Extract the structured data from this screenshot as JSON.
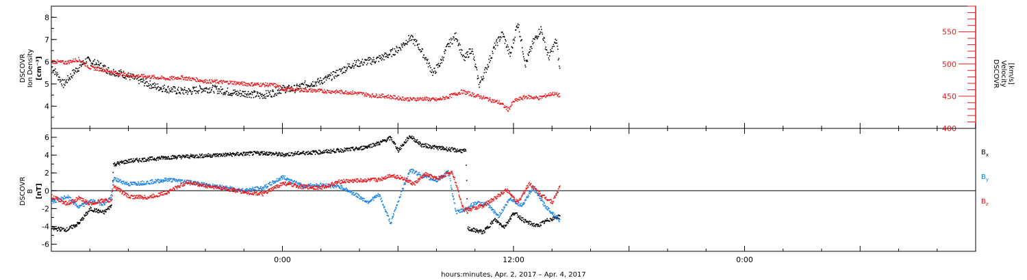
{
  "chart_data": [
    {
      "type": "scatter",
      "panel": "top",
      "left_axis": {
        "label_lines": [
          "DSCOVR",
          "Ion Density"
        ],
        "unit": "[cm⁻³]",
        "range": [
          3,
          8.5
        ],
        "ticks": [
          4,
          5,
          6,
          7,
          8
        ]
      },
      "right_axis": {
        "label_lines": [
          "DSCOVR",
          "Velocity"
        ],
        "unit": "[km/s]",
        "range": [
          400,
          590
        ],
        "ticks": [
          400,
          450,
          500,
          550
        ],
        "color": "#e8191c"
      },
      "series": [
        {
          "color": "#000000",
          "axis": "left",
          "points": [
            [
              -12,
              5.8
            ],
            [
              -11.4,
              5.0
            ],
            [
              -10.8,
              5.6
            ],
            [
              -10.2,
              6.1
            ],
            [
              -9.6,
              5.9
            ],
            [
              -9.0,
              5.6
            ],
            [
              -8.4,
              5.5
            ],
            [
              -7.8,
              5.3
            ],
            [
              -7.2,
              5.1
            ],
            [
              -6.6,
              4.9
            ],
            [
              -6.0,
              4.8
            ],
            [
              -5.4,
              4.7
            ],
            [
              -4.8,
              4.7
            ],
            [
              -4.2,
              4.8
            ],
            [
              -3.6,
              4.8
            ],
            [
              -3.0,
              4.7
            ],
            [
              -2.4,
              4.6
            ],
            [
              -1.8,
              4.6
            ],
            [
              -1.2,
              4.5
            ],
            [
              -0.6,
              4.6
            ],
            [
              0,
              4.8
            ],
            [
              0.6,
              4.8
            ],
            [
              1.2,
              5.0
            ],
            [
              1.8,
              5.1
            ],
            [
              2.4,
              5.3
            ],
            [
              3.0,
              5.6
            ],
            [
              3.6,
              5.9
            ],
            [
              4.2,
              6.0
            ],
            [
              4.8,
              6.1
            ],
            [
              5.4,
              6.3
            ],
            [
              6.0,
              6.6
            ],
            [
              6.6,
              7.1
            ],
            [
              7.0,
              6.8
            ],
            [
              7.4,
              6.2
            ],
            [
              7.8,
              5.5
            ],
            [
              8.2,
              6.0
            ],
            [
              8.6,
              6.8
            ],
            [
              9.0,
              7.2
            ],
            [
              9.4,
              6.1
            ],
            [
              9.8,
              6.6
            ],
            [
              10.2,
              5.0
            ],
            [
              10.6,
              5.8
            ],
            [
              11.0,
              6.7
            ],
            [
              11.4,
              7.3
            ],
            [
              11.8,
              6.3
            ],
            [
              12.2,
              7.8
            ],
            [
              12.6,
              5.9
            ],
            [
              13.0,
              6.9
            ],
            [
              13.4,
              7.5
            ],
            [
              13.8,
              6.2
            ],
            [
              14.2,
              7.0
            ],
            [
              14.4,
              5.5
            ]
          ]
        },
        {
          "color": "#e8191c",
          "axis": "right",
          "points": [
            [
              -12,
              505
            ],
            [
              -11.3,
              503
            ],
            [
              -10.6,
              508
            ],
            [
              -10,
              495
            ],
            [
              -9.3,
              492
            ],
            [
              -8.6,
              486
            ],
            [
              -8,
              483
            ],
            [
              -7.3,
              482
            ],
            [
              -6.6,
              480
            ],
            [
              -6,
              478
            ],
            [
              -5.3,
              480
            ],
            [
              -4.6,
              477
            ],
            [
              -4,
              474
            ],
            [
              -3.3,
              473
            ],
            [
              -2.6,
              472
            ],
            [
              -2,
              470
            ],
            [
              -1.3,
              469
            ],
            [
              -0.4,
              468
            ],
            [
              0,
              462
            ],
            [
              0.6,
              461
            ],
            [
              1.3,
              460
            ],
            [
              2,
              459
            ],
            [
              2.6,
              458
            ],
            [
              3.3,
              457
            ],
            [
              4,
              455
            ],
            [
              4.6,
              452
            ],
            [
              5.3,
              451
            ],
            [
              6,
              448
            ],
            [
              6.6,
              446
            ],
            [
              7.3,
              447
            ],
            [
              8,
              445
            ],
            [
              8.6,
              450
            ],
            [
              9.3,
              458
            ],
            [
              10,
              452
            ],
            [
              10.6,
              447
            ],
            [
              11.3,
              440
            ],
            [
              11.7,
              430
            ],
            [
              12,
              443
            ],
            [
              12.6,
              450
            ],
            [
              13.3,
              448
            ],
            [
              14,
              455
            ],
            [
              14.4,
              452
            ]
          ]
        }
      ]
    },
    {
      "type": "line",
      "panel": "bottom",
      "left_axis": {
        "label_lines": [
          "DSCOVR",
          "B"
        ],
        "unit": "[nT]",
        "range": [
          -6.8,
          7
        ],
        "ticks": [
          -6,
          -4,
          -2,
          0,
          2,
          4,
          6
        ]
      },
      "legend": [
        {
          "text": "B",
          "sub": "x",
          "color": "#000000"
        },
        {
          "text": "B",
          "sub": "y",
          "color": "#1a82e6"
        },
        {
          "text": "B",
          "sub": "z",
          "color": "#e8191c"
        }
      ],
      "series": [
        {
          "name": "Bx",
          "color": "#000000",
          "points": [
            [
              -12,
              -4.2
            ],
            [
              -11.2,
              -4.3
            ],
            [
              -10.6,
              -3.6
            ],
            [
              -10,
              -2.0
            ],
            [
              -9.3,
              -2.4
            ],
            [
              -8.9,
              -1.6
            ],
            [
              -8.8,
              3.0
            ],
            [
              -8,
              3.4
            ],
            [
              -7,
              3.6
            ],
            [
              -6,
              3.8
            ],
            [
              -5,
              3.9
            ],
            [
              -4,
              4.0
            ],
            [
              -3,
              4.1
            ],
            [
              -2,
              4.2
            ],
            [
              -1,
              4.3
            ],
            [
              0,
              4.1
            ],
            [
              1,
              4.3
            ],
            [
              2,
              4.4
            ],
            [
              3,
              4.6
            ],
            [
              4,
              4.8
            ],
            [
              5,
              5.4
            ],
            [
              5.6,
              6.0
            ],
            [
              6,
              4.6
            ],
            [
              6.6,
              6.2
            ],
            [
              7.2,
              5.2
            ],
            [
              8,
              4.9
            ],
            [
              9,
              4.6
            ],
            [
              9.5,
              4.5
            ],
            [
              9.6,
              -4.2
            ],
            [
              10.4,
              -4.6
            ],
            [
              11,
              -3.2
            ],
            [
              11.5,
              -4.0
            ],
            [
              12,
              -2.4
            ],
            [
              12.6,
              -3.4
            ],
            [
              13.2,
              -3.9
            ],
            [
              13.8,
              -3.2
            ],
            [
              14.4,
              -2.8
            ]
          ]
        },
        {
          "name": "By",
          "color": "#1a82e6",
          "points": [
            [
              -12,
              -1.2
            ],
            [
              -11.2,
              -0.6
            ],
            [
              -10.6,
              -1.8
            ],
            [
              -10,
              -1.1
            ],
            [
              -9.3,
              -1.4
            ],
            [
              -8.9,
              -0.6
            ],
            [
              -8.8,
              1.4
            ],
            [
              -8,
              0.8
            ],
            [
              -7,
              1.0
            ],
            [
              -6,
              1.3
            ],
            [
              -5,
              1.1
            ],
            [
              -4,
              0.7
            ],
            [
              -3,
              0.4
            ],
            [
              -2,
              0.1
            ],
            [
              -1,
              0.4
            ],
            [
              0,
              1.6
            ],
            [
              1,
              0.6
            ],
            [
              2,
              0.7
            ],
            [
              3,
              0.5
            ],
            [
              3.8,
              -0.4
            ],
            [
              4.4,
              -1.2
            ],
            [
              5,
              -0.4
            ],
            [
              5.6,
              -3.6
            ],
            [
              6,
              -1.0
            ],
            [
              6.6,
              2.4
            ],
            [
              7.4,
              1.6
            ],
            [
              8,
              1.2
            ],
            [
              8.6,
              2.2
            ],
            [
              9,
              -2.4
            ],
            [
              9.5,
              -2.0
            ],
            [
              10,
              -1.3
            ],
            [
              10.6,
              -1.5
            ],
            [
              11.2,
              -2.8
            ],
            [
              11.8,
              -0.8
            ],
            [
              12.4,
              -1.6
            ],
            [
              13,
              0.4
            ],
            [
              13.6,
              -1.6
            ],
            [
              14.4,
              -3.3
            ]
          ]
        },
        {
          "name": "Bz",
          "color": "#e8191c",
          "points": [
            [
              -12,
              -0.6
            ],
            [
              -11.2,
              -1.4
            ],
            [
              -10.6,
              -0.8
            ],
            [
              -10,
              -1.4
            ],
            [
              -9.3,
              -1.0
            ],
            [
              -8.9,
              -1.1
            ],
            [
              -8.8,
              0.6
            ],
            [
              -8,
              -0.6
            ],
            [
              -7,
              -0.7
            ],
            [
              -6,
              -0.1
            ],
            [
              -5,
              1.0
            ],
            [
              -4,
              0.6
            ],
            [
              -3,
              0.3
            ],
            [
              -2,
              -0.1
            ],
            [
              -1,
              -0.3
            ],
            [
              0,
              0.9
            ],
            [
              1,
              0.5
            ],
            [
              2,
              0.4
            ],
            [
              3,
              1.1
            ],
            [
              4,
              1.2
            ],
            [
              5,
              1.3
            ],
            [
              5.6,
              1.8
            ],
            [
              6.2,
              1.5
            ],
            [
              6.8,
              0.8
            ],
            [
              7.4,
              1.9
            ],
            [
              8,
              1.4
            ],
            [
              8.8,
              2.2
            ],
            [
              9.4,
              -2.1
            ],
            [
              9.8,
              -2.0
            ],
            [
              10.4,
              -1.6
            ],
            [
              11,
              -0.8
            ],
            [
              11.6,
              0.2
            ],
            [
              12.2,
              -1.3
            ],
            [
              12.8,
              0.9
            ],
            [
              13.4,
              -0.4
            ],
            [
              14,
              -1.2
            ],
            [
              14.4,
              0.6
            ]
          ]
        }
      ]
    }
  ],
  "x_axis": {
    "tick_labels": [
      "0:00",
      "12:00",
      "0:00"
    ],
    "label": "hours:minutes, Apr.  2, 2017 – Apr.  4, 2017"
  }
}
